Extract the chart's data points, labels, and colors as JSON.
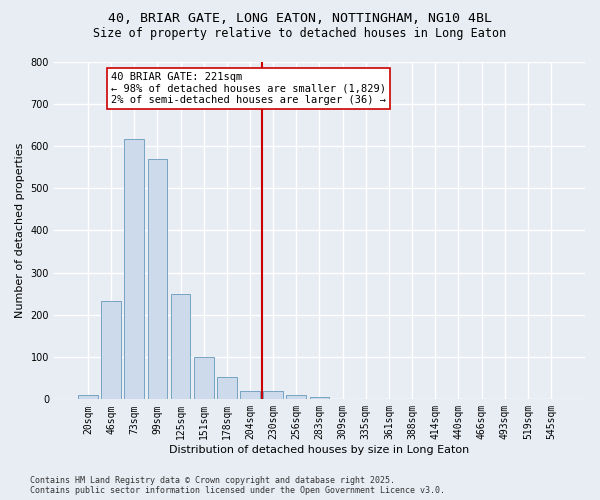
{
  "title_line1": "40, BRIAR GATE, LONG EATON, NOTTINGHAM, NG10 4BL",
  "title_line2": "Size of property relative to detached houses in Long Eaton",
  "xlabel": "Distribution of detached houses by size in Long Eaton",
  "ylabel": "Number of detached properties",
  "bar_color": "#ccdaeb",
  "bar_edge_color": "#6699bb",
  "background_color": "#e8edf4",
  "grid_color": "#ffffff",
  "categories": [
    "20sqm",
    "46sqm",
    "73sqm",
    "99sqm",
    "125sqm",
    "151sqm",
    "178sqm",
    "204sqm",
    "230sqm",
    "256sqm",
    "283sqm",
    "309sqm",
    "335sqm",
    "361sqm",
    "388sqm",
    "414sqm",
    "440sqm",
    "466sqm",
    "493sqm",
    "519sqm",
    "545sqm"
  ],
  "values": [
    10,
    232,
    617,
    570,
    250,
    100,
    52,
    20,
    20,
    10,
    5,
    0,
    0,
    0,
    0,
    0,
    0,
    0,
    0,
    0,
    0
  ],
  "ylim": [
    0,
    800
  ],
  "yticks": [
    0,
    100,
    200,
    300,
    400,
    500,
    600,
    700,
    800
  ],
  "vline_color": "#cc0000",
  "annotation_title": "40 BRIAR GATE: 221sqm",
  "annotation_line2": "← 98% of detached houses are smaller (1,829)",
  "annotation_line3": "2% of semi-detached houses are larger (36) →",
  "footer_line1": "Contains HM Land Registry data © Crown copyright and database right 2025.",
  "footer_line2": "Contains public sector information licensed under the Open Government Licence v3.0.",
  "title_fontsize": 9.5,
  "subtitle_fontsize": 8.5,
  "axis_label_fontsize": 8,
  "tick_fontsize": 7,
  "annotation_fontsize": 7.5,
  "footer_fontsize": 6
}
